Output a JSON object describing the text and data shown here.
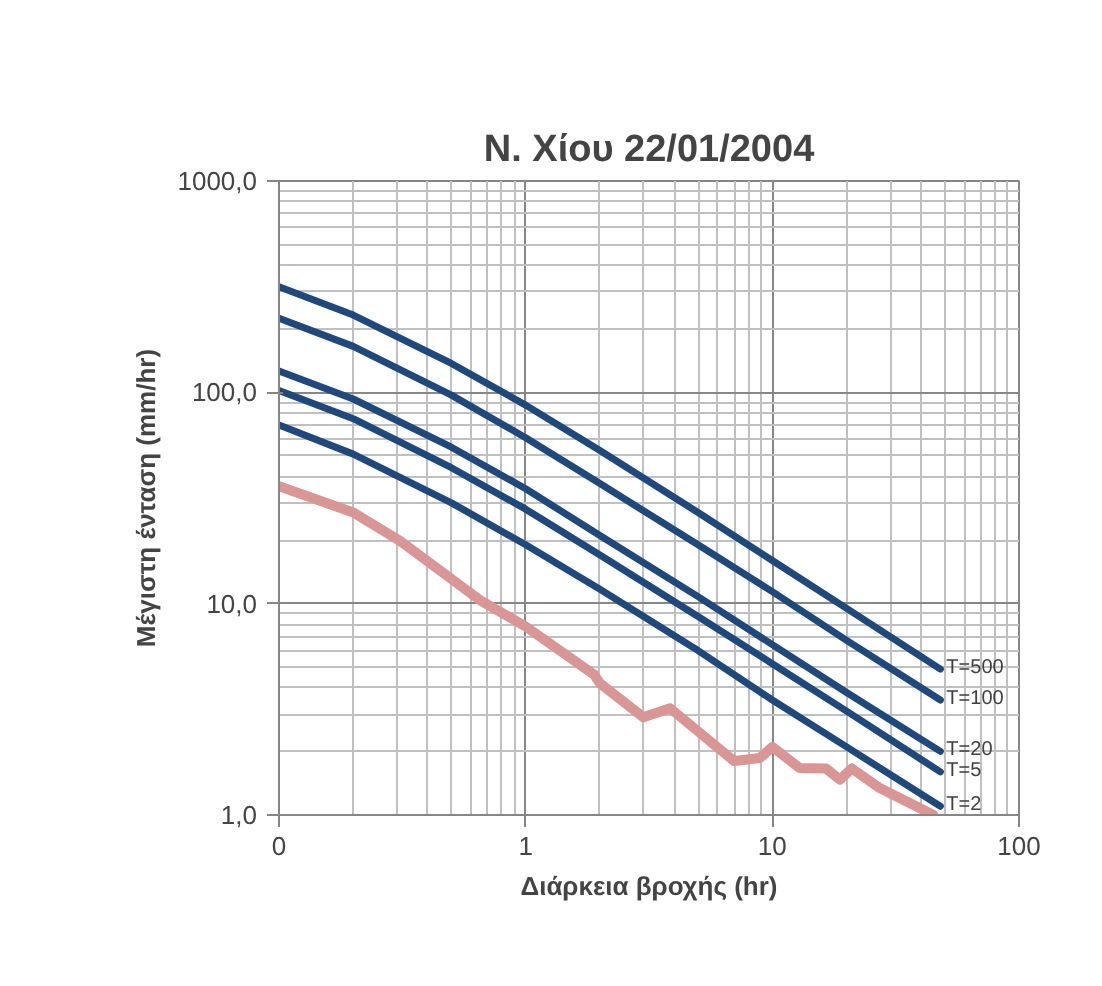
{
  "chart_data": {
    "type": "line",
    "title": "Ν. Χίου 22/01/2004",
    "xlabel": "Διάρκεια βροχής (hr)",
    "ylabel": "Μέγιστη ένταση (mm/hr)",
    "log": "xy",
    "grid": true,
    "marker": "none",
    "line_style": "solid",
    "xlim": [
      0.1,
      100
    ],
    "ylim": [
      1,
      1000
    ],
    "xticks": [
      {
        "value": 0.1,
        "label": "0"
      },
      1,
      10,
      100
    ],
    "yticks": [
      {
        "value": 1,
        "label": "1,0"
      },
      {
        "value": 10,
        "label": "10,0"
      },
      {
        "value": 100,
        "label": "100,0"
      },
      {
        "value": 1000,
        "label": "1000,0"
      }
    ],
    "x": [
      0.1,
      0.2,
      0.5,
      1,
      2,
      5,
      10,
      20,
      48
    ],
    "series": [
      {
        "name": "T=500",
        "color": "#1f497d",
        "values": [
          316,
          232,
          137,
          87,
          53,
          27,
          16,
          9.5,
          4.9
        ]
      },
      {
        "name": "T=100",
        "color": "#1f497d",
        "values": [
          224,
          165,
          97,
          61,
          37,
          19,
          11.4,
          6.7,
          3.5
        ]
      },
      {
        "name": "T=20",
        "color": "#1f497d",
        "values": [
          126,
          93,
          55,
          35,
          21,
          10.8,
          6.4,
          3.8,
          2.0
        ]
      },
      {
        "name": "T=5",
        "color": "#1f497d",
        "values": [
          102,
          75,
          44,
          28,
          17,
          8.7,
          5.2,
          3.1,
          1.6
        ]
      },
      {
        "name": "T=2",
        "color": "#1f497d",
        "values": [
          70,
          51,
          30,
          19,
          11.7,
          6.0,
          3.5,
          2.1,
          1.1
        ]
      },
      {
        "color": "#d99694",
        "x": [
          0.1,
          0.2,
          0.31,
          0.66,
          1,
          1.9,
          2.0,
          3.0,
          3.85,
          7.0,
          8.9,
          10,
          12.9,
          16.5,
          18.8,
          21,
          27,
          45
        ],
        "values": [
          36,
          27,
          19.8,
          10.3,
          7.8,
          4.6,
          4.2,
          2.9,
          3.2,
          1.8,
          1.86,
          2.1,
          1.67,
          1.66,
          1.47,
          1.66,
          1.35,
          1.0
        ]
      }
    ]
  }
}
